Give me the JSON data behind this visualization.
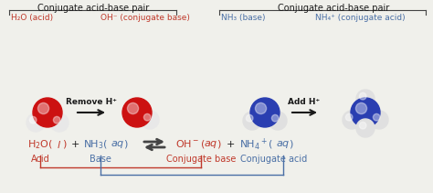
{
  "bg_color": "#f0f0eb",
  "red_color": "#c0392b",
  "blue_color": "#4a6fa5",
  "black_color": "#1a1a1a",
  "dark_gray": "#444444",
  "top_label_left": "Conjugate acid-base pair",
  "top_label_right": "Conjugate acid-base pair",
  "h2o_acid_label": "H₂O (acid)",
  "oh_base_label": "OH⁻ (conjugate base)",
  "nh3_base_label": "NH₃ (base)",
  "nh4_acid_label": "NH₄⁺ (conjugate acid)",
  "remove_h": "Remove H⁺",
  "add_h": "Add H⁺",
  "label_acid": "Acid",
  "label_base": "Base",
  "label_conj_base": "Conjugate base",
  "label_conj_acid": "Conjugate acid",
  "w_red": "#cc1111",
  "w_white": "#e8e8e8",
  "n_blue": "#2a3eb1",
  "n_white": "#e0e0e0"
}
